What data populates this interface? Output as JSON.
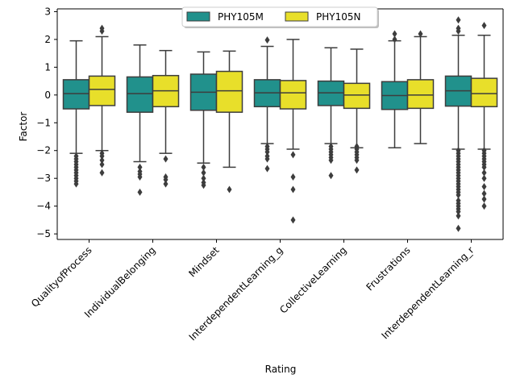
{
  "chart_data": {
    "type": "box",
    "xlabel": "Rating",
    "ylabel": "Factor",
    "ylim": [
      -5.2,
      3.1
    ],
    "yticks": [
      3,
      2,
      1,
      0,
      -1,
      -2,
      -3,
      -4,
      -5
    ],
    "ytick_labels": [
      "3",
      "2",
      "1",
      "0",
      "−1",
      "−2",
      "−3",
      "−4",
      "−5"
    ],
    "legend_position": "upper-center",
    "grid": false,
    "categories": [
      "QualityofProcess",
      "IndividualBelonging",
      "Mindset",
      "InterdependentLearning_g",
      "CollectiveLearning",
      "Frustrations",
      "InterdependentLearning_r"
    ],
    "series": [
      {
        "name": "PHY105M",
        "color": "#21918c",
        "boxes": [
          {
            "q1": -0.5,
            "median": 0.05,
            "q3": 0.55,
            "whislo": -2.1,
            "whishi": 1.95,
            "fliers": [
              -2.2,
              -2.3,
              -2.4,
              -2.5,
              -2.6,
              -2.7,
              -2.8,
              -2.9,
              -3.0,
              -3.1,
              -3.2
            ]
          },
          {
            "q1": -0.62,
            "median": 0.05,
            "q3": 0.65,
            "whislo": -2.4,
            "whishi": 1.8,
            "fliers": [
              -2.6,
              -2.75,
              -2.85,
              -2.95,
              -3.5
            ]
          },
          {
            "q1": -0.55,
            "median": 0.1,
            "q3": 0.75,
            "whislo": -2.45,
            "whishi": 1.55,
            "fliers": [
              -2.6,
              -2.8,
              -3.0,
              -3.15,
              -3.25
            ]
          },
          {
            "q1": -0.42,
            "median": 0.08,
            "q3": 0.55,
            "whislo": -1.75,
            "whishi": 1.75,
            "fliers": [
              -1.85,
              -1.95,
              -2.05,
              -2.2,
              -2.3,
              -2.65,
              1.98
            ]
          },
          {
            "q1": -0.38,
            "median": 0.08,
            "q3": 0.5,
            "whislo": -1.75,
            "whishi": 1.7,
            "fliers": [
              -1.85,
              -1.95,
              -2.05,
              -2.15,
              -2.25,
              -2.35,
              -2.9
            ]
          },
          {
            "q1": -0.52,
            "median": -0.02,
            "q3": 0.48,
            "whislo": -1.9,
            "whishi": 1.95,
            "fliers": [
              2.0,
              2.2
            ]
          },
          {
            "q1": -0.4,
            "median": 0.15,
            "q3": 0.68,
            "whislo": -1.95,
            "whishi": 2.15,
            "fliers": [
              -2.0,
              -2.1,
              -2.2,
              -2.3,
              -2.4,
              -2.5,
              -2.6,
              -2.7,
              -2.8,
              -2.9,
              -3.0,
              -3.1,
              -3.2,
              -3.3,
              -3.4,
              -3.5,
              -3.6,
              -3.8,
              -3.9,
              -4.0,
              -4.1,
              -4.2,
              -4.35,
              -4.8,
              2.3,
              2.4,
              2.7
            ]
          }
        ]
      },
      {
        "name": "PHY105N",
        "color": "#e8df2a",
        "boxes": [
          {
            "q1": -0.38,
            "median": 0.2,
            "q3": 0.68,
            "whislo": -2.0,
            "whishi": 2.1,
            "fliers": [
              -2.1,
              -2.2,
              -2.35,
              -2.5,
              -2.8,
              2.3,
              2.4
            ]
          },
          {
            "q1": -0.42,
            "median": 0.15,
            "q3": 0.7,
            "whislo": -2.1,
            "whishi": 1.6,
            "fliers": [
              -2.3,
              -2.95,
              -3.05,
              -3.2
            ]
          },
          {
            "q1": -0.62,
            "median": 0.15,
            "q3": 0.85,
            "whislo": -2.6,
            "whishi": 1.58,
            "fliers": [
              -3.4
            ]
          },
          {
            "q1": -0.5,
            "median": 0.08,
            "q3": 0.52,
            "whislo": -1.95,
            "whishi": 2.0,
            "fliers": [
              -2.15,
              -2.95,
              -3.4,
              -4.5
            ]
          },
          {
            "q1": -0.48,
            "median": 0.0,
            "q3": 0.42,
            "whislo": -1.9,
            "whishi": 1.65,
            "fliers": [
              -1.85,
              -1.95,
              -2.05,
              -2.15,
              -2.25,
              -2.35,
              -2.7
            ]
          },
          {
            "q1": -0.48,
            "median": 0.0,
            "q3": 0.55,
            "whislo": -1.75,
            "whishi": 2.1,
            "fliers": [
              2.2
            ]
          },
          {
            "q1": -0.42,
            "median": 0.05,
            "q3": 0.6,
            "whislo": -1.95,
            "whishi": 2.15,
            "fliers": [
              -2.0,
              -2.1,
              -2.2,
              -2.3,
              -2.4,
              -2.5,
              -2.6,
              -2.8,
              -3.0,
              -3.3,
              -3.55,
              -3.75,
              -4.0,
              2.5
            ]
          }
        ]
      }
    ]
  }
}
